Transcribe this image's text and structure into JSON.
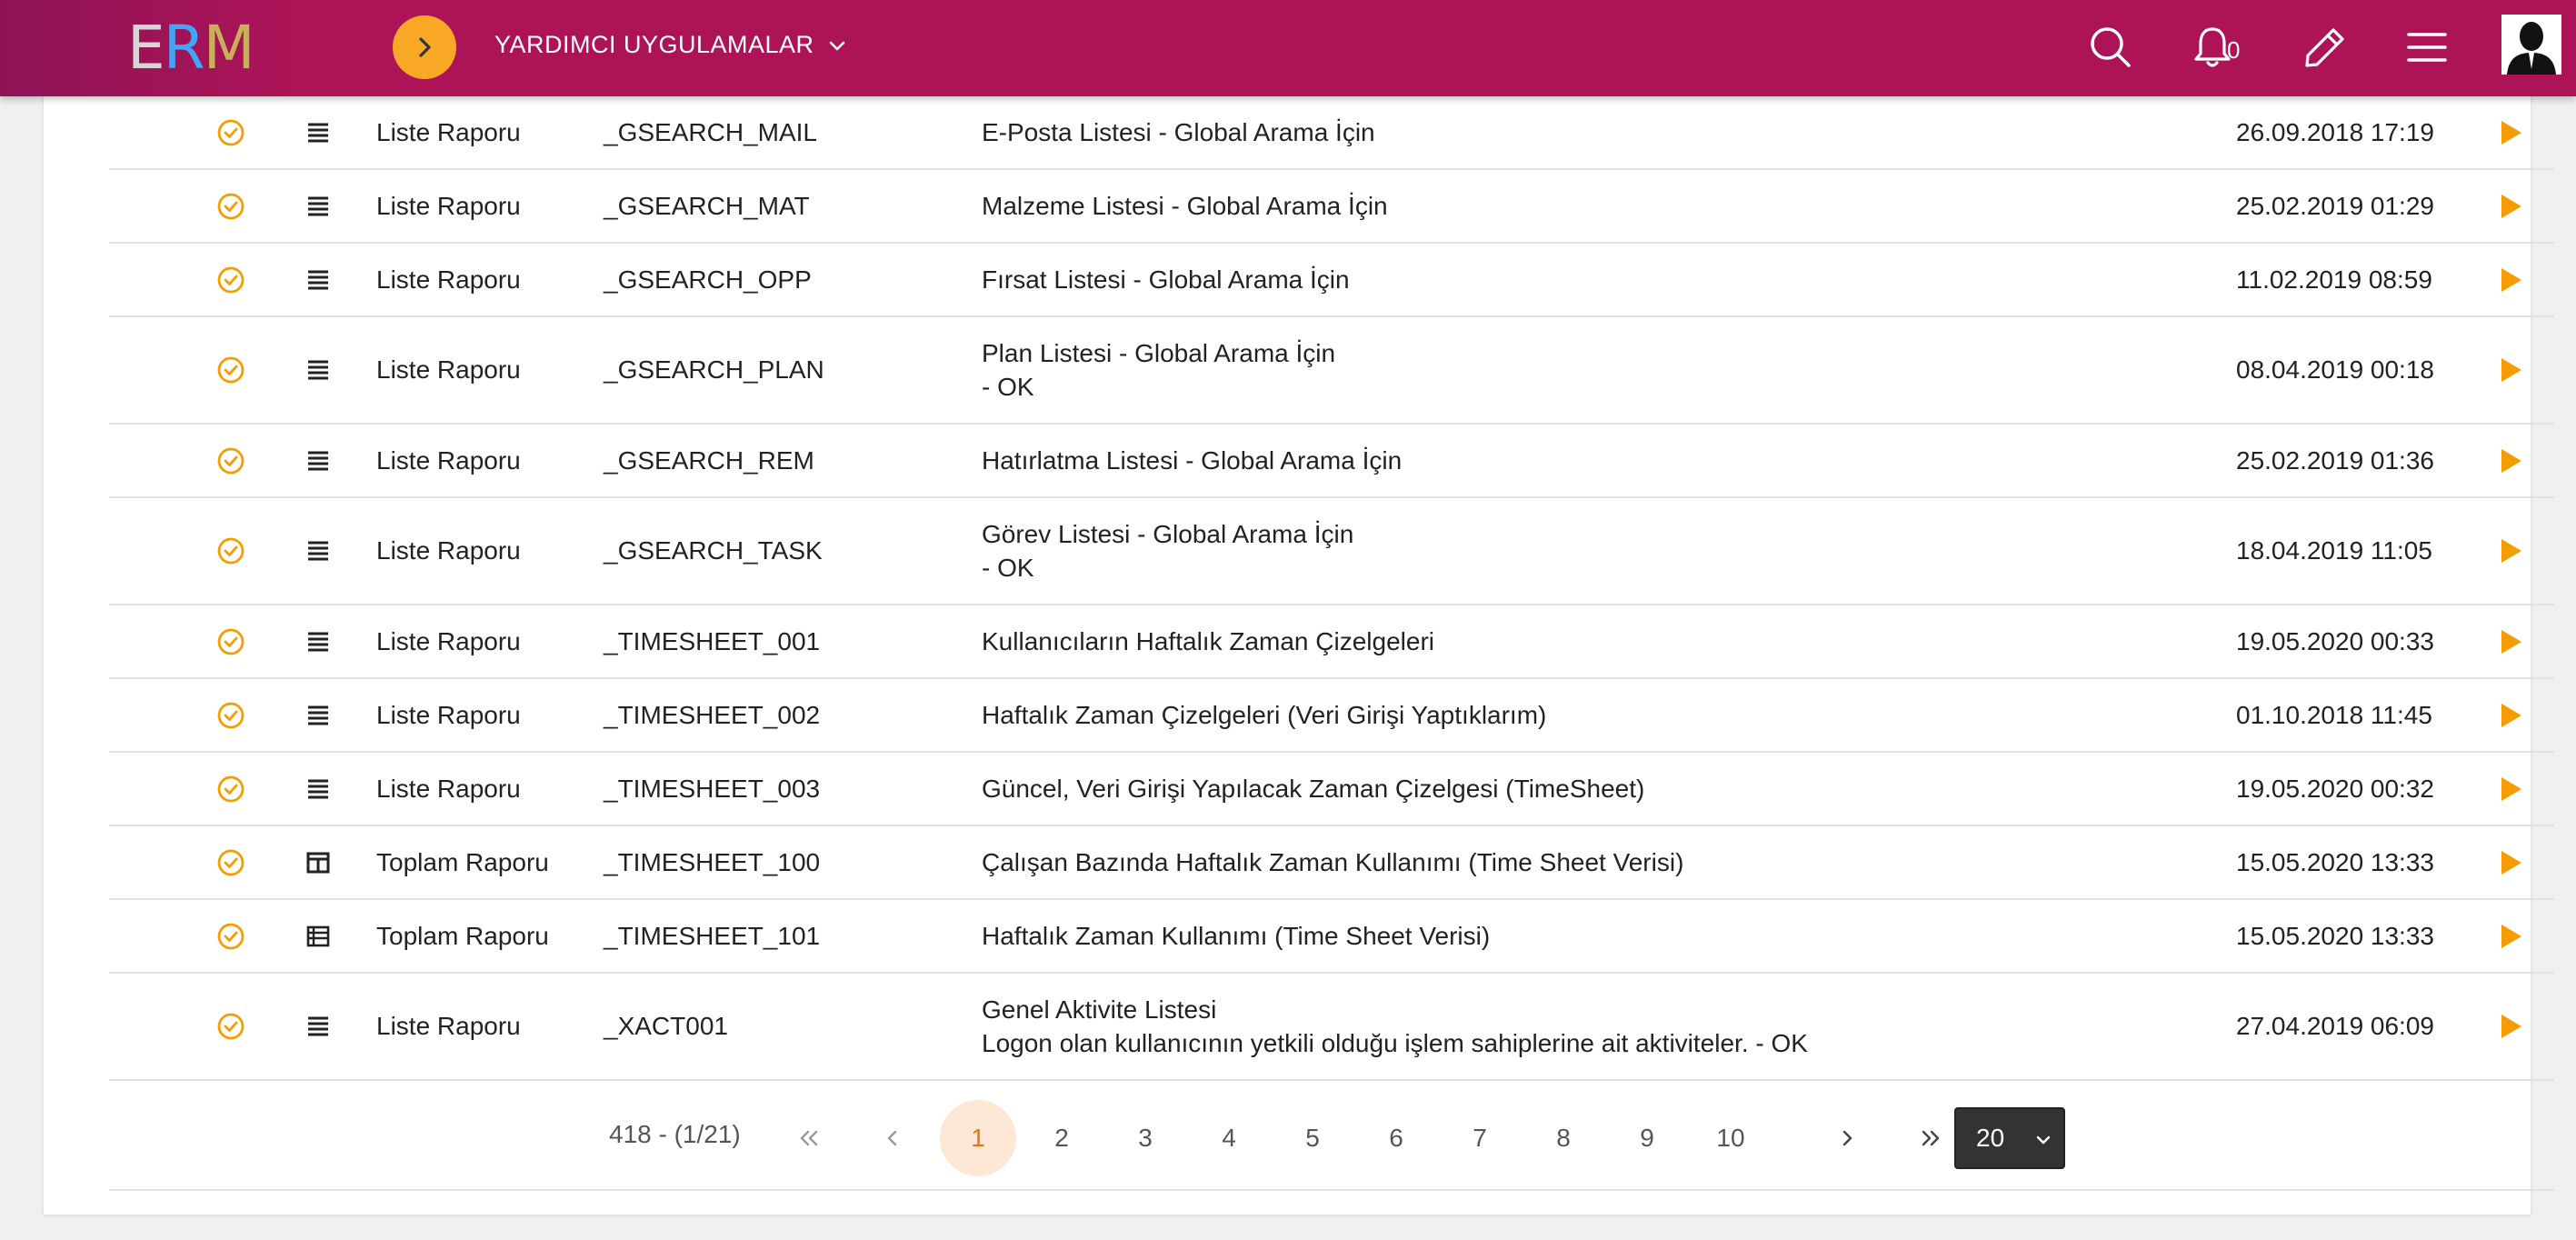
{
  "header": {
    "logo_letters": [
      "E",
      "R",
      "M"
    ],
    "menu_title": "YARDIMCI UYGULAMALAR",
    "notification_count": "0",
    "icons": [
      "chevron-right-icon",
      "chevron-down-icon",
      "search-icon",
      "bell-icon",
      "pencil-icon",
      "menu-icon",
      "avatar"
    ]
  },
  "rows": [
    {
      "kind": "Liste Raporu",
      "type_icon": "list-icon",
      "code": "_GSEARCH_MAIL",
      "desc": [
        "E-Posta Listesi - Global Arama İçin"
      ],
      "date": "26.09.2018 17:19"
    },
    {
      "kind": "Liste Raporu",
      "type_icon": "list-icon",
      "code": "_GSEARCH_MAT",
      "desc": [
        "Malzeme Listesi - Global Arama İçin"
      ],
      "date": "25.02.2019 01:29"
    },
    {
      "kind": "Liste Raporu",
      "type_icon": "list-icon",
      "code": "_GSEARCH_OPP",
      "desc": [
        "Fırsat Listesi - Global Arama İçin"
      ],
      "date": "11.02.2019 08:59"
    },
    {
      "kind": "Liste Raporu",
      "type_icon": "list-icon",
      "code": "_GSEARCH_PLAN",
      "desc": [
        "Plan Listesi - Global Arama İçin",
        "- OK"
      ],
      "date": "08.04.2019 00:18"
    },
    {
      "kind": "Liste Raporu",
      "type_icon": "list-icon",
      "code": "_GSEARCH_REM",
      "desc": [
        "Hatırlatma Listesi - Global Arama İçin"
      ],
      "date": "25.02.2019 01:36"
    },
    {
      "kind": "Liste Raporu",
      "type_icon": "list-icon",
      "code": "_GSEARCH_TASK",
      "desc": [
        "Görev Listesi - Global Arama İçin",
        "- OK"
      ],
      "date": "18.04.2019 11:05"
    },
    {
      "kind": "Liste Raporu",
      "type_icon": "list-icon",
      "code": "_TIMESHEET_001",
      "desc": [
        "Kullanıcıların Haftalık Zaman Çizelgeleri"
      ],
      "date": "19.05.2020 00:33"
    },
    {
      "kind": "Liste Raporu",
      "type_icon": "list-icon",
      "code": "_TIMESHEET_002",
      "desc": [
        "Haftalık Zaman Çizelgeleri (Veri Girişi Yaptıklarım)"
      ],
      "date": "01.10.2018 11:45"
    },
    {
      "kind": "Liste Raporu",
      "type_icon": "list-icon",
      "code": "_TIMESHEET_003",
      "desc": [
        "Güncel, Veri Girişi Yapılacak Zaman Çizelgesi (TimeSheet)"
      ],
      "date": "19.05.2020 00:32"
    },
    {
      "kind": "Toplam Raporu",
      "type_icon": "pivot-icon",
      "code": "_TIMESHEET_100",
      "desc": [
        "Çalışan Bazında Haftalık Zaman Kullanımı (Time Sheet Verisi)"
      ],
      "date": "15.05.2020 13:33"
    },
    {
      "kind": "Toplam Raporu",
      "type_icon": "table-icon",
      "code": "_TIMESHEET_101",
      "desc": [
        "Haftalık Zaman Kullanımı (Time Sheet Verisi)"
      ],
      "date": "15.05.2020 13:33"
    },
    {
      "kind": "Liste Raporu",
      "type_icon": "list-icon",
      "code": "_XACT001",
      "desc": [
        "Genel Aktivite Listesi",
        "Logon olan kullanıcının yetkili olduğu işlem sahiplerine ait aktiviteler. - OK"
      ],
      "date": "27.04.2019 06:09"
    }
  ],
  "pagination": {
    "total": "418 - (1/21)",
    "pages": [
      "1",
      "2",
      "3",
      "4",
      "5",
      "6",
      "7",
      "8",
      "9",
      "10"
    ],
    "current": "1",
    "first": "«",
    "prev": "‹",
    "next": "›",
    "last": "»",
    "per_page": "20"
  },
  "colors": {
    "topbar": "#ad1457",
    "accent_orange": "#f9a825",
    "play_orange": "#f59c00",
    "active_page_bg": "#fde7d6"
  }
}
